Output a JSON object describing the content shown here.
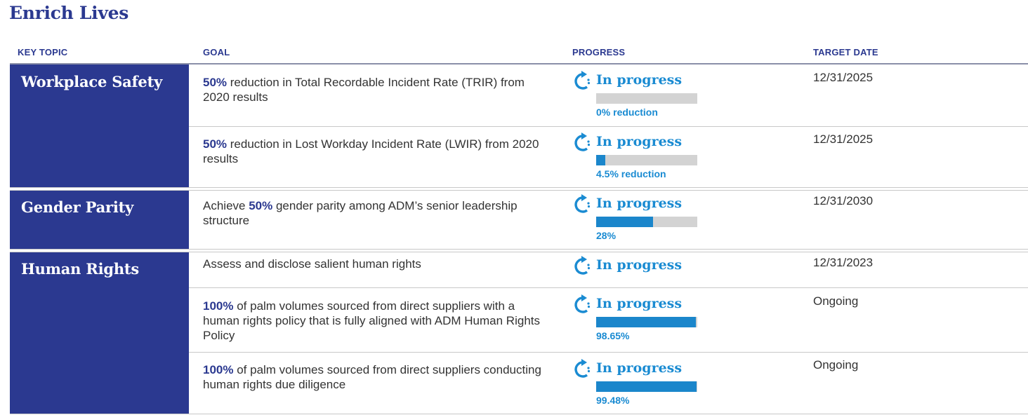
{
  "title": "Enrich Lives",
  "headers": {
    "topic": "KEY TOPIC",
    "goal": "GOAL",
    "progress": "PROGRESS",
    "date": "TARGET DATE"
  },
  "topics": [
    "Workplace Safety",
    "Gender Parity",
    "Human Rights"
  ],
  "rows": [
    {
      "goal_pre": "",
      "goal_bold": "50%",
      "goal_post": " reduction in Total Recordable Incident Rate (TRIR) from 2020 results",
      "status": "In progress",
      "progress": 0,
      "bar_label": "0% reduction",
      "date": "12/31/2025"
    },
    {
      "goal_pre": "",
      "goal_bold": "50%",
      "goal_post": " reduction in Lost Workday Incident Rate (LWIR) from 2020 results",
      "status": "In progress",
      "progress": 9,
      "bar_label": "4.5% reduction",
      "date": "12/31/2025"
    },
    {
      "goal_pre": "Achieve ",
      "goal_bold": "50%",
      "goal_post": " gender parity among ADM’s senior leadership structure",
      "status": "In progress",
      "progress": 56,
      "bar_label": "28%",
      "date": "12/31/2030"
    },
    {
      "goal_pre": "Assess and disclose salient human rights",
      "goal_bold": "",
      "goal_post": "",
      "status": "In progress",
      "date": "12/31/2023"
    },
    {
      "goal_pre": "",
      "goal_bold": "100%",
      "goal_post": " of palm volumes sourced from direct suppliers with a human rights policy that is fully aligned with ADM Human Rights Policy",
      "status": "In progress",
      "progress": 98.65,
      "bar_label": "98.65%",
      "date": "Ongoing"
    },
    {
      "goal_pre": "",
      "goal_bold": "100%",
      "goal_post": " of palm volumes sourced from direct suppliers conducting human rights due diligence",
      "status": "In progress",
      "progress": 99.48,
      "bar_label": "99.48%",
      "date": "Ongoing"
    }
  ],
  "colors": {
    "navy": "#2b3990",
    "accent_blue": "#1a8bd2",
    "bar_fill": "#1b86cb",
    "bar_track": "#d3d3d3"
  },
  "icons": {
    "status": "refresh-arrows-icon"
  }
}
